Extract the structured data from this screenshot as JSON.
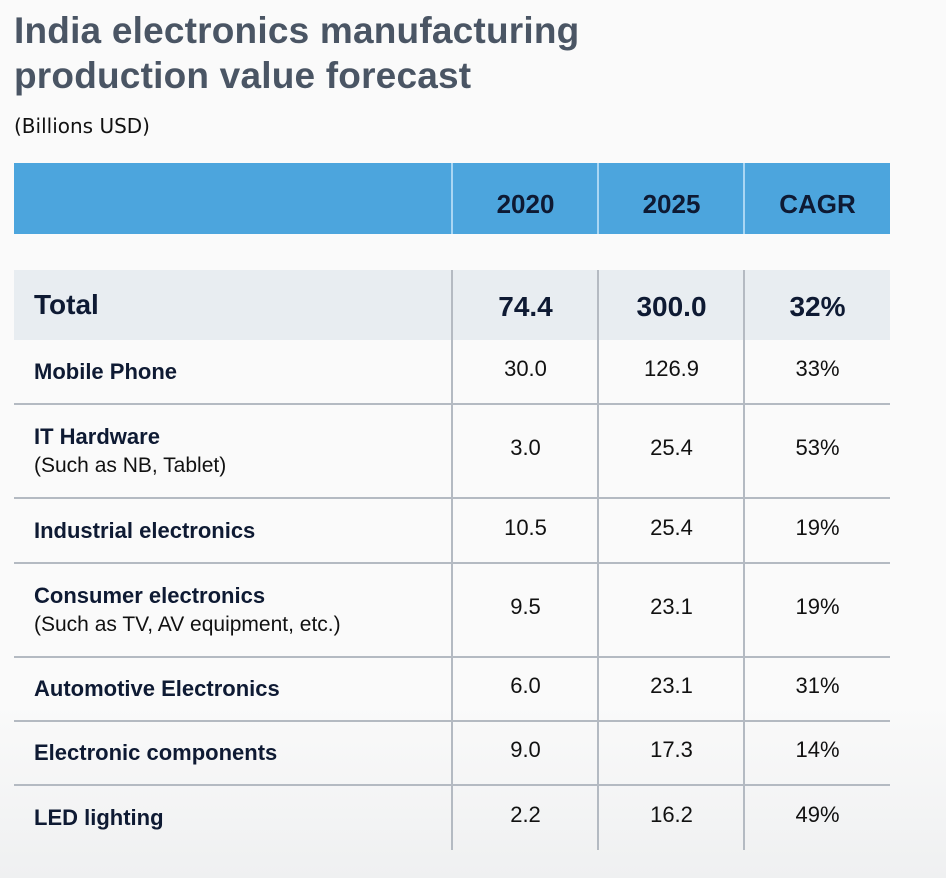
{
  "title_line1": "India electronics manufacturing",
  "title_line2": "production value forecast",
  "subtitle": "(Billions USD)",
  "colors": {
    "header_bg": "#4ca5dd",
    "total_row_bg": "#e8edf1",
    "title_color": "#4a5564",
    "text_dark": "#0e1a33"
  },
  "table": {
    "headers": [
      "",
      "2020",
      "2025",
      "CAGR"
    ],
    "total": {
      "label": "Total",
      "v2020": "74.4",
      "v2025": "300.0",
      "cagr": "32%"
    },
    "rows": [
      {
        "label": "Mobile Phone",
        "sub": "",
        "v2020": "30.0",
        "v2025": "126.9",
        "cagr": "33%"
      },
      {
        "label": "IT Hardware",
        "sub": "(Such as NB, Tablet)",
        "v2020": "3.0",
        "v2025": "25.4",
        "cagr": "53%"
      },
      {
        "label": "Industrial electronics",
        "sub": "",
        "v2020": "10.5",
        "v2025": "25.4",
        "cagr": "19%"
      },
      {
        "label": "Consumer electronics",
        "sub": "(Such as TV, AV equipment, etc.)",
        "v2020": "9.5",
        "v2025": "23.1",
        "cagr": "19%"
      },
      {
        "label": "Automotive Electronics",
        "sub": "",
        "v2020": "6.0",
        "v2025": "23.1",
        "cagr": "31%"
      },
      {
        "label": "Electronic components",
        "sub": "",
        "v2020": "9.0",
        "v2025": "17.3",
        "cagr": "14%"
      },
      {
        "label": "LED lighting",
        "sub": "",
        "v2020": "2.2",
        "v2025": "16.2",
        "cagr": "49%"
      }
    ]
  }
}
